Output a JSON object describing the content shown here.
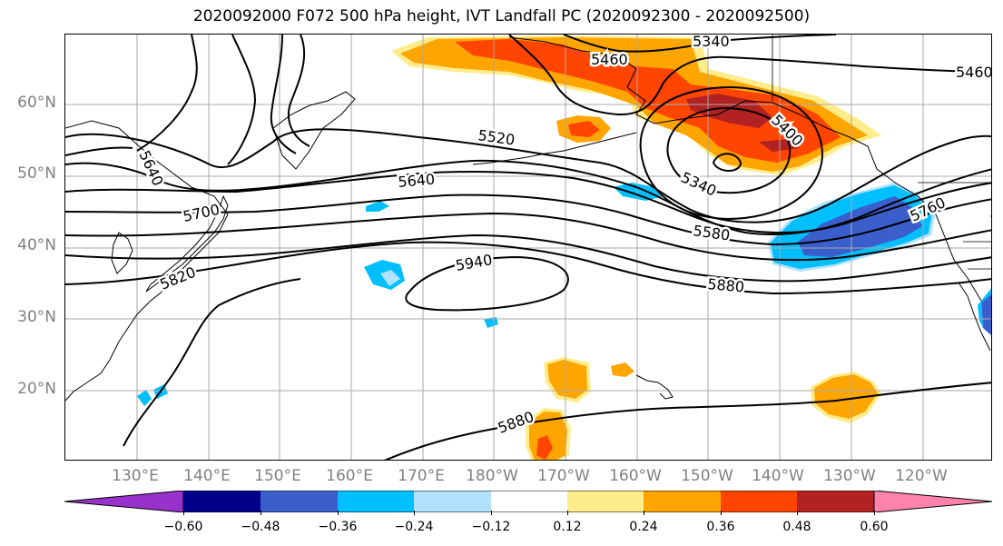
{
  "title": "2020092000 F072 500 hPa height, IVT Landfall PC (2020092300 - 2020092500)",
  "lat_labels": [
    "60°N",
    "50°N",
    "40°N",
    "30°N",
    "20°N"
  ],
  "lon_labels": [
    "130°E",
    "140°E",
    "150°E",
    "160°E",
    "170°E",
    "180°W",
    "170°W",
    "160°W",
    "150°W",
    "140°W",
    "130°W",
    "120°W"
  ],
  "contour_labels": [
    "5340",
    "5460",
    "5460",
    "5400",
    "5340",
    "5520",
    "5640",
    "5640",
    "5700",
    "5580",
    "5760",
    "5940",
    "5880",
    "5820",
    "5880"
  ],
  "colorbar": {
    "ticks": [
      "−0.60",
      "−0.48",
      "−0.36",
      "−0.24",
      "−0.12",
      "0.12",
      "0.24",
      "0.36",
      "0.48",
      "0.60"
    ],
    "colors": [
      "#9932cc",
      "#00008b",
      "#3a5fcd",
      "#00bfff",
      "#b0e2ff",
      "#ffffff",
      "#ffec8b",
      "#ffa500",
      "#ff4500",
      "#b22222",
      "#ff82ab"
    ]
  },
  "colors": {
    "grid": "#a9a9a9",
    "coast": "#000000",
    "positive_strong": "#b22222",
    "positive_mid": "#ff4500",
    "positive_low": "#ffa500",
    "positive_faint": "#ffec8b",
    "negative_strong": "#3a5fcd",
    "negative_mid": "#00bfff",
    "negative_faint": "#b0e2ff"
  }
}
